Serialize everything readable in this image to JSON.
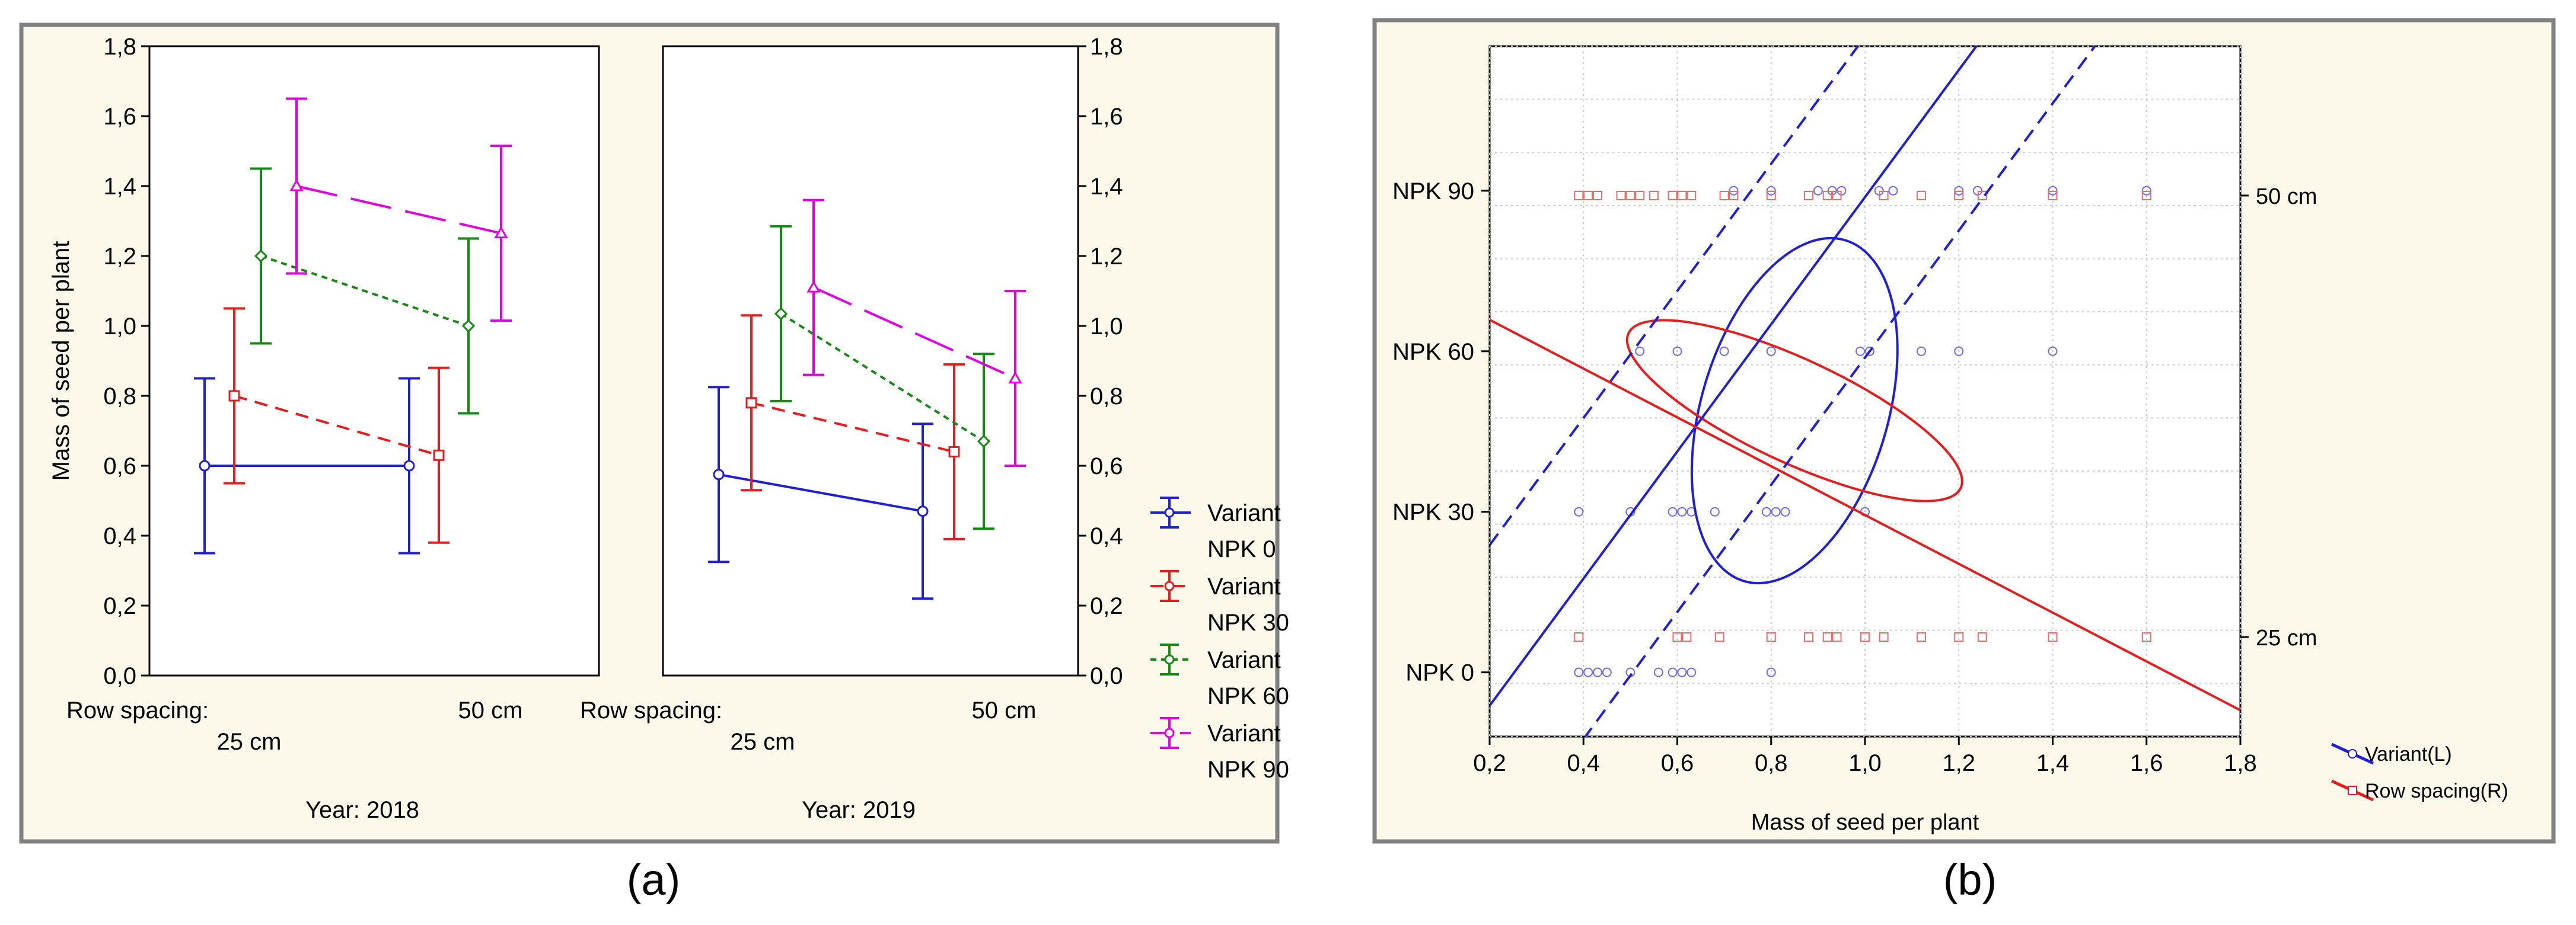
{
  "colors": {
    "npk0": "#1f1fd6",
    "npk30": "#e31e1e",
    "npk60": "#148a14",
    "npk90": "#e000e0",
    "variant": "#1f1fd6",
    "rowspacing": "#e31e1e",
    "panel_bg": "#fdf9ea",
    "frame": "#808080"
  },
  "captions": {
    "a": "(a)",
    "b": "(b)"
  },
  "chart_data": [
    {
      "id": "a",
      "type": "line",
      "title": "",
      "ylabel": "Mass of seed per plant",
      "ylim": [
        0,
        1.8
      ],
      "yticks": [
        "0,0",
        "0,2",
        "0,4",
        "0,6",
        "0,8",
        "1,0",
        "1,2",
        "1,4",
        "1,6",
        "1,8"
      ],
      "xlabel_prefix": "Row spacing:",
      "categories": [
        "25 cm",
        "50 cm"
      ],
      "panels": [
        {
          "year_label": "Year: 2018",
          "series": [
            {
              "name": "Variant NPK 0",
              "mean": [
                0.6,
                0.6
              ],
              "lower": [
                0.35,
                0.35
              ],
              "upper": [
                0.85,
                0.85
              ]
            },
            {
              "name": "Variant NPK 30",
              "mean": [
                0.8,
                0.63
              ],
              "lower": [
                0.55,
                0.38
              ],
              "upper": [
                1.05,
                0.88
              ]
            },
            {
              "name": "Variant NPK 60",
              "mean": [
                1.2,
                1.0
              ],
              "lower": [
                0.95,
                0.75
              ],
              "upper": [
                1.45,
                1.25
              ]
            },
            {
              "name": "Variant NPK 90",
              "mean": [
                1.4,
                1.265
              ],
              "lower": [
                1.15,
                1.015
              ],
              "upper": [
                1.65,
                1.515
              ]
            }
          ]
        },
        {
          "year_label": "Year: 2019",
          "series": [
            {
              "name": "Variant NPK 0",
              "mean": [
                0.575,
                0.47
              ],
              "lower": [
                0.325,
                0.22
              ],
              "upper": [
                0.825,
                0.72
              ]
            },
            {
              "name": "Variant NPK 30",
              "mean": [
                0.78,
                0.64
              ],
              "lower": [
                0.53,
                0.39
              ],
              "upper": [
                1.03,
                0.89
              ]
            },
            {
              "name": "Variant NPK 60",
              "mean": [
                1.035,
                0.67
              ],
              "lower": [
                0.785,
                0.42
              ],
              "upper": [
                1.285,
                0.92
              ]
            },
            {
              "name": "Variant NPK 90",
              "mean": [
                1.11,
                0.85
              ],
              "lower": [
                0.86,
                0.6
              ],
              "upper": [
                1.36,
                1.1
              ]
            }
          ]
        }
      ],
      "legend": [
        {
          "line1": "Variant",
          "line2": "NPK 0"
        },
        {
          "line1": "Variant",
          "line2": "NPK 30"
        },
        {
          "line1": "Variant",
          "line2": "NPK 60"
        },
        {
          "line1": "Variant",
          "line2": "NPK 90"
        }
      ]
    },
    {
      "id": "b",
      "type": "scatter",
      "title": "",
      "xlabel": "Mass of seed per plant",
      "xlim": [
        0.2,
        1.8
      ],
      "xticks": [
        {
          "v": 0.2,
          "label": "0,2"
        },
        {
          "v": 0.4,
          "label": "0,4"
        },
        {
          "v": 0.6,
          "label": "0,6"
        },
        {
          "v": 0.8,
          "label": "0,8"
        },
        {
          "v": 1.0,
          "label": "1,0"
        },
        {
          "v": 1.2,
          "label": "1,2"
        },
        {
          "v": 1.4,
          "label": "1,4"
        },
        {
          "v": 1.6,
          "label": "1,6"
        },
        {
          "v": 1.8,
          "label": "1,8"
        }
      ],
      "left_ylim": [
        -0.4,
        3.9
      ],
      "left_ticks": [
        {
          "v": 0,
          "label": "NPK 0"
        },
        {
          "v": 1,
          "label": "NPK 30"
        },
        {
          "v": 2,
          "label": "NPK 60"
        },
        {
          "v": 3,
          "label": "NPK 90"
        }
      ],
      "right_ylim": [
        -0.4,
        3.9
      ],
      "right_ticks": [
        {
          "v": 0.22,
          "label": "25 cm"
        },
        {
          "v": 2.97,
          "label": "50 cm"
        }
      ],
      "variant_points": {
        "0": [
          0.39,
          0.41,
          0.43,
          0.45,
          0.5,
          0.56,
          0.59,
          0.61,
          0.63,
          0.8
        ],
        "1": [
          0.39,
          0.5,
          0.59,
          0.61,
          0.63,
          0.68,
          0.79,
          0.81,
          0.83,
          1.0
        ],
        "2": [
          0.52,
          0.6,
          0.7,
          0.8,
          0.99,
          1.01,
          1.12,
          1.2,
          1.4
        ],
        "3": [
          0.72,
          0.8,
          0.9,
          0.93,
          0.95,
          1.03,
          1.06,
          1.2,
          1.24,
          1.4,
          1.6
        ]
      },
      "rowspacing_points": {
        "0.22": [
          0.39,
          0.6,
          0.62,
          0.69,
          0.8,
          0.88,
          0.92,
          0.94,
          1.0,
          1.04,
          1.12,
          1.2,
          1.25,
          1.4,
          1.6
        ],
        "2.97": [
          0.39,
          0.41,
          0.43,
          0.48,
          0.5,
          0.52,
          0.55,
          0.59,
          0.61,
          0.63,
          0.7,
          0.72,
          0.8,
          0.88,
          0.92,
          0.94,
          1.04,
          1.12,
          1.2,
          1.25,
          1.4,
          1.6
        ]
      },
      "variant_regression": {
        "slope": 3.96,
        "intercept": -1.0
      },
      "variant_conf_offset": 1.0,
      "rowspacing_regression": {
        "slope": -1.52,
        "intercept": 2.5
      },
      "variant_ellipse": {
        "cx": 0.85,
        "cy": 1.63,
        "major": 2.0,
        "minor": 1.05,
        "angle_deg": 73.5
      },
      "rowspacing_ellipse": {
        "cx": 0.85,
        "cy": 1.63,
        "major": 2.06,
        "minor": 0.58,
        "angle_deg": -25
      },
      "legend": [
        {
          "label": "Variant(L)",
          "marker": "circle"
        },
        {
          "label": "Row spacing(R)",
          "marker": "square"
        }
      ]
    }
  ]
}
